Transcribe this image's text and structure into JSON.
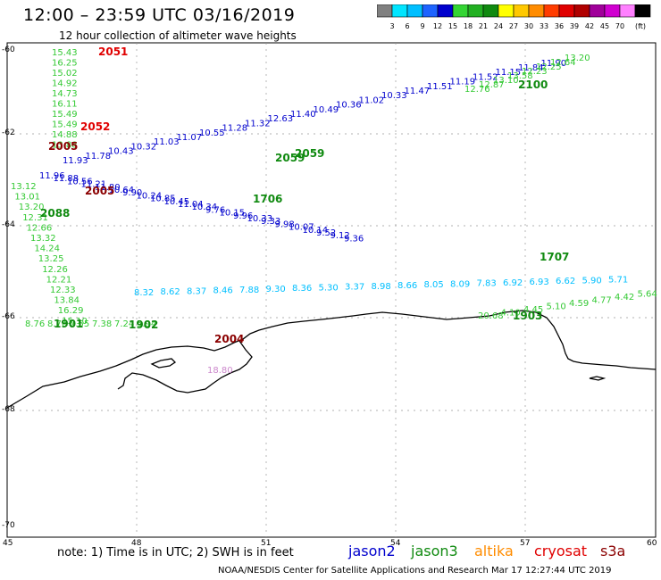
{
  "header": {
    "title": "12:00 – 23:59 UTC 03/16/2019",
    "subtitle": "12 hour collection of altimeter wave heights"
  },
  "colorbar": {
    "unit": "(ft)",
    "ticks": [
      "3",
      "6",
      "9",
      "12",
      "15",
      "18",
      "21",
      "24",
      "27",
      "30",
      "33",
      "36",
      "39",
      "42",
      "45",
      "70"
    ],
    "colors": [
      "#808080",
      "#00e5ff",
      "#00bfff",
      "#1e64ff",
      "#0000cd",
      "#34d534",
      "#22b022",
      "#108a10",
      "#ffff00",
      "#ffc800",
      "#ff8c00",
      "#ff3c00",
      "#e00000",
      "#b00000",
      "#a0009a",
      "#d000d0",
      "#ff80ff",
      "#000000"
    ]
  },
  "axes": {
    "lat_labels": [
      "-60",
      "-62",
      "-64",
      "-66",
      "-68",
      "-70"
    ],
    "lon_labels": [
      "45",
      "48",
      "51",
      "54",
      "57",
      "60"
    ]
  },
  "tracks": {
    "jason3_vertical": [
      "15.43",
      "16.25",
      "15.02",
      "14.92",
      "14.73",
      "16.11",
      "15.49",
      "15.49",
      "14.88",
      "13.88"
    ],
    "pass_ids": [
      {
        "id": "2051",
        "color": "#e00000"
      },
      {
        "id": "2052",
        "color": "#e00000"
      },
      {
        "id": "2005",
        "color": "#8b0000"
      },
      {
        "id": "2005",
        "color": "#8b0000"
      },
      {
        "id": "2004",
        "color": "#8b0000"
      },
      {
        "id": "2100",
        "color": "#108a10"
      },
      {
        "id": "2059",
        "color": "#108a10"
      },
      {
        "id": "2059",
        "color": "#108a10"
      },
      {
        "id": "1706",
        "color": "#108a10"
      },
      {
        "id": "2088",
        "color": "#108a10"
      },
      {
        "id": "1901",
        "color": "#108a10"
      },
      {
        "id": "1902",
        "color": "#108a10"
      },
      {
        "id": "1903",
        "color": "#108a10"
      },
      {
        "id": "1707",
        "color": "#108a10"
      }
    ],
    "blue_upper": [
      "11.93",
      "11.78",
      "10.43",
      "10.32",
      "11.03",
      "11.07",
      "10.55",
      "11.28",
      "11.32",
      "12.63",
      "11.40",
      "10.49",
      "10.36",
      "11.02",
      "10.33",
      "11.47",
      "11.51",
      "11.19",
      "11.52",
      "11.15",
      "11.84",
      "11.90"
    ],
    "blue_lower": [
      "11.96",
      "11.88",
      "10.56",
      "11.21",
      "11.80",
      "10.64",
      "9.90",
      "10.24",
      "10.85",
      "10.45",
      "11.04",
      "10.34",
      "9.76",
      "10.15",
      "9.96",
      "10.33",
      "9.33",
      "9.98",
      "10.07",
      "10.14",
      "9.52",
      "9.12",
      "9.36"
    ],
    "cyan_lower": [
      "8.32",
      "8.62",
      "8.37",
      "8.46",
      "7.88",
      "9.30",
      "8.36",
      "5.30",
      "3.37",
      "8.98",
      "8.66",
      "8.05",
      "8.09",
      "7.83",
      "6.92",
      "6.93",
      "6.62",
      "5.90",
      "5.71"
    ],
    "green_upper": [
      "13.20",
      "12.64",
      "12.25",
      "12.23",
      "13.58",
      "13.10",
      "12.87",
      "12.76"
    ],
    "green_west": [
      "13.12",
      "13.01",
      "13.20",
      "12.31",
      "12.66",
      "13.32",
      "14.24",
      "13.25",
      "12.26",
      "12.21",
      "12.33",
      "13.84",
      "16.29",
      "15.10"
    ],
    "southwest": [
      "8.76",
      "8.76",
      "7.55",
      "7.38",
      "7.24",
      "5.94"
    ],
    "southeast": [
      "20.68",
      "4.10",
      "4.45",
      "5.10",
      "4.59",
      "4.77",
      "4.42",
      "5.64"
    ],
    "violet": [
      "18.80"
    ]
  },
  "legend": {
    "note": "note:  1) Time is in UTC;  2) SWH is in feet",
    "satellites": [
      {
        "name": "jason2",
        "color": "#0000cd"
      },
      {
        "name": "jason3",
        "color": "#108a10"
      },
      {
        "name": "altika",
        "color": "#ff8c00"
      },
      {
        "name": "cryosat",
        "color": "#e00000"
      },
      {
        "name": "s3a",
        "color": "#8b0000"
      }
    ]
  },
  "credit": "NOAA/NESDIS Center for Satellite Applications and Research    Mar 17 12:27:44 UTC 2019"
}
